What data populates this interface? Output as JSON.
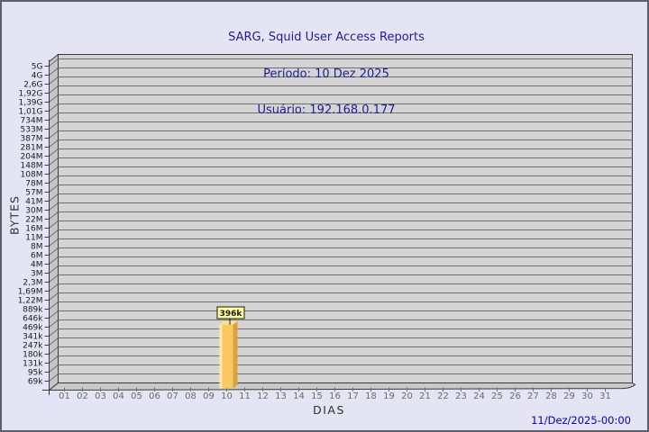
{
  "window": {
    "background": "#e4e4f4",
    "border_color": "#5f5f68"
  },
  "header": {
    "title": "SARG, Squid User Access Reports",
    "period": "Período: 10 Dez 2025",
    "user": "Usuário: 192.168.0.177",
    "text_color": "#1e1e96"
  },
  "footer": {
    "timestamp": "11/Dez/2025-00:00",
    "text_color": "#0000c4"
  },
  "chart_data": {
    "type": "bar",
    "title": "SARG, Squid User Access Reports",
    "subtitle_period": "Período: 10 Dez 2025",
    "subtitle_user": "Usuário: 192.168.0.177",
    "xlabel": "DIAS",
    "ylabel": "BYTES",
    "y_scale": "log",
    "legend_position": "none",
    "grid": true,
    "categories": [
      "01",
      "02",
      "03",
      "04",
      "05",
      "06",
      "07",
      "08",
      "09",
      "10",
      "11",
      "12",
      "13",
      "14",
      "15",
      "16",
      "17",
      "18",
      "19",
      "20",
      "21",
      "22",
      "23",
      "24",
      "25",
      "26",
      "27",
      "28",
      "29",
      "30",
      "31"
    ],
    "values": [
      0,
      0,
      0,
      0,
      0,
      0,
      0,
      0,
      0,
      396000,
      0,
      0,
      0,
      0,
      0,
      0,
      0,
      0,
      0,
      0,
      0,
      0,
      0,
      0,
      0,
      0,
      0,
      0,
      0,
      0,
      0
    ],
    "bars": [
      {
        "category": "10",
        "value": 396000,
        "label": "396k"
      }
    ],
    "y_tick_labels": [
      "5G",
      "4G",
      "2,6G",
      "1,92G",
      "1,39G",
      "1,01G",
      "734M",
      "533M",
      "387M",
      "281M",
      "204M",
      "148M",
      "108M",
      "78M",
      "57M",
      "41M",
      "30M",
      "22M",
      "16M",
      "11M",
      "8M",
      "6M",
      "4M",
      "3M",
      "2,3M",
      "1,69M",
      "1,22M",
      "889k",
      "646k",
      "469k",
      "341k",
      "247k",
      "180k",
      "131k",
      "95k",
      "69k"
    ],
    "colors": {
      "plot_band": "#d4d4d4",
      "grid_line": "#6f6f6f",
      "plot_border": "#3a3a3a",
      "wall": "#c6c6c6",
      "floor": "#c9c9c9",
      "bar_front": "#fbc763",
      "bar_highlight": "#ffe9a4",
      "bar_side": "#d9a23f",
      "bar_top": "#ffdf93",
      "value_box_bg": "#ffff9c",
      "value_box_border": "#1a1a1a",
      "y_tick_text": "#1a1a1a",
      "x_tick_text": "#6b6b6b",
      "axis_title_text": "#2f2f2f"
    }
  }
}
